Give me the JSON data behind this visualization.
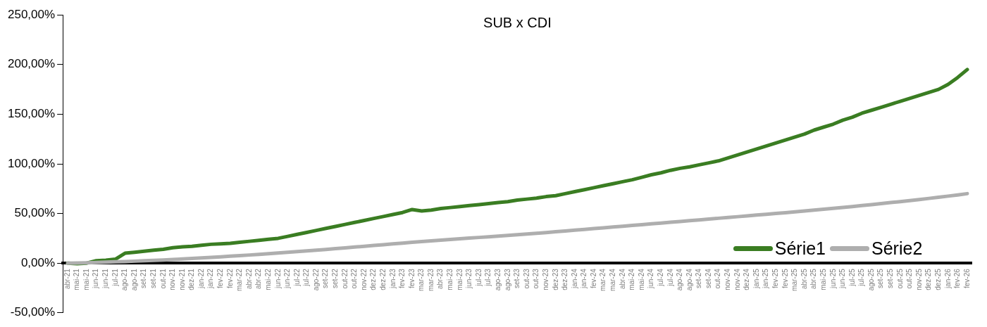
{
  "chart_data": {
    "type": "line",
    "title": "SUB x CDI",
    "categories": [
      "abr-21",
      "mai-21",
      "mai-21",
      "jun-21",
      "jun-21",
      "jul-21",
      "ago-21",
      "ago-21",
      "set-21",
      "set-21",
      "out-21",
      "nov-21",
      "nov-21",
      "dez-21",
      "jan-22",
      "jan-22",
      "fev-22",
      "fev-22",
      "mar-22",
      "abr-22",
      "abr-22",
      "mai-22",
      "jun-22",
      "jun-22",
      "jul-22",
      "jul-22",
      "ago-22",
      "set-22",
      "set-22",
      "out-22",
      "out-22",
      "nov-22",
      "dez-22",
      "dez-22",
      "jan-23",
      "fev-23",
      "fev-23",
      "mar-23",
      "mar-23",
      "abr-23",
      "mai-23",
      "mai-23",
      "jun-23",
      "jul-23",
      "jul-23",
      "ago-23",
      "ago-23",
      "set-23",
      "out-23",
      "out-23",
      "nov-23",
      "dez-23",
      "dez-23",
      "jan-24",
      "jan-24",
      "fev-24",
      "mar-24",
      "mar-24",
      "abr-24",
      "mai-24",
      "mai-24",
      "jun-24",
      "jul-24",
      "jul-24",
      "ago-24",
      "ago-24",
      "set-24",
      "set-24",
      "out-24",
      "nov-24",
      "nov-24",
      "dez-24",
      "jan-25",
      "jan-25",
      "fev-25",
      "fev-25",
      "mar-25",
      "abr-25",
      "abr-25",
      "mai-25",
      "jun-25",
      "jun-25",
      "jul-25",
      "jul-25",
      "ago-25",
      "set-25",
      "set-25",
      "out-25",
      "out-25",
      "nov-25",
      "dez-25",
      "dez-25",
      "jan-26",
      "fev-26",
      "fev-26"
    ],
    "series": [
      {
        "name": "Série1",
        "color": "#3a7d22",
        "values": [
          0,
          -0.5,
          0,
          2.5,
          3,
          4,
          10,
          11,
          12,
          13,
          14,
          15.5,
          16.5,
          17,
          18,
          19,
          19.5,
          20,
          21,
          22,
          23,
          24,
          25,
          27,
          29,
          31,
          33,
          35,
          37,
          39,
          41,
          43,
          45,
          47,
          49,
          51,
          54,
          52.5,
          53.5,
          55,
          56,
          57,
          58,
          59,
          60,
          61,
          62,
          63.5,
          64.5,
          65.5,
          67,
          68,
          70,
          72,
          74,
          76,
          78,
          80,
          82,
          84,
          86.5,
          89,
          91,
          93.5,
          95.5,
          97,
          99,
          101,
          103,
          106,
          109,
          112,
          115,
          118,
          121,
          124,
          127,
          130,
          134,
          137,
          140,
          144,
          147,
          151,
          154,
          157,
          160,
          163,
          166,
          169,
          172,
          175,
          180,
          187,
          195
        ]
      },
      {
        "name": "Série2",
        "color": "#aeaeae",
        "values": [
          0,
          0.2,
          0.4,
          0.7,
          1,
          1.3,
          1.6,
          2,
          2.4,
          2.8,
          3.2,
          3.7,
          4.2,
          4.7,
          5.2,
          5.8,
          6.4,
          7,
          7.6,
          8.2,
          8.8,
          9.5,
          10.2,
          10.9,
          11.6,
          12.3,
          13,
          13.8,
          14.6,
          15.4,
          16.2,
          17,
          17.8,
          18.6,
          19.4,
          20.2,
          21,
          21.7,
          22.4,
          23.1,
          23.8,
          24.5,
          25.2,
          25.9,
          26.6,
          27.3,
          28,
          28.7,
          29.4,
          30.1,
          30.8,
          31.6,
          32.4,
          33.2,
          34,
          34.8,
          35.6,
          36.4,
          37.2,
          38,
          38.8,
          39.6,
          40.4,
          41.2,
          42,
          42.8,
          43.6,
          44.4,
          45.2,
          46,
          46.8,
          47.6,
          48.4,
          49.2,
          50,
          50.8,
          51.6,
          52.5,
          53.4,
          54.3,
          55.2,
          56.1,
          57,
          58,
          59,
          60,
          61,
          62,
          63,
          64.1,
          65.2,
          66.3,
          67.5,
          68.7,
          70
        ]
      }
    ],
    "ylim": [
      -50,
      250
    ],
    "yticks": [
      {
        "value": -50,
        "label": "-50,00%"
      },
      {
        "value": 0,
        "label": "0,00%"
      },
      {
        "value": 50,
        "label": "50,00%"
      },
      {
        "value": 100,
        "label": "100,00%"
      },
      {
        "value": 150,
        "label": "150,00%"
      },
      {
        "value": 200,
        "label": "200,00%"
      },
      {
        "value": 250,
        "label": "250,00%"
      }
    ],
    "grid": false,
    "legend": "bottom right",
    "marker": "none",
    "line_style": "solid"
  }
}
